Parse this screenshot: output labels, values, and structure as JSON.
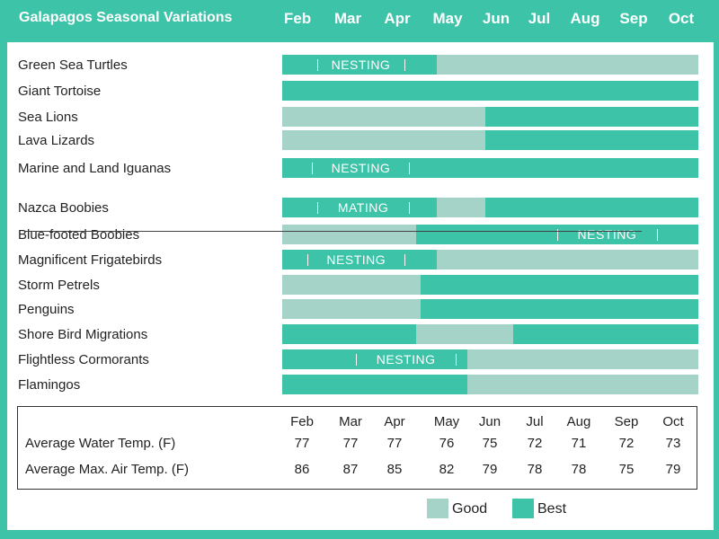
{
  "title": "Galapagos Seasonal Variations",
  "colors": {
    "good": "#a5d3c7",
    "best": "#3cc3a8"
  },
  "chart_data": {
    "type": "timeline",
    "months": [
      "Feb",
      "Mar",
      "Apr",
      "May",
      "Jun",
      "Jul",
      "Aug",
      "Sep",
      "Oct"
    ],
    "groups": [
      [
        {
          "label": "Green Sea Turtles",
          "segments": [
            [
              "best",
              0,
              3.35
            ],
            [
              "good",
              3.35,
              9
            ]
          ],
          "note": {
            "text": "NESTING",
            "from": 0.75,
            "to": 2.65
          }
        },
        {
          "label": "Giant Tortoise",
          "segments": [
            [
              "best",
              0,
              9
            ]
          ]
        },
        {
          "label": "Sea Lions",
          "segments": [
            [
              "good",
              0,
              4.4
            ],
            [
              "best",
              4.4,
              9
            ]
          ]
        },
        {
          "label": "Lava Lizards",
          "segments": [
            [
              "good",
              0,
              4.4
            ],
            [
              "best",
              4.4,
              9
            ]
          ]
        },
        {
          "label": "Marine and Land Iguanas",
          "segments": [
            [
              "best",
              0,
              9
            ]
          ],
          "note": {
            "text": "NESTING",
            "from": 0.65,
            "to": 2.75
          }
        }
      ],
      [
        {
          "label": "Nazca Boobies",
          "segments": [
            [
              "best",
              0,
              3.35
            ],
            [
              "good",
              3.35,
              4.4
            ],
            [
              "best",
              4.4,
              9
            ]
          ],
          "note": {
            "text": "MATING",
            "from": 0.75,
            "to": 2.75
          }
        },
        {
          "label": "Blue-footed Boobies",
          "segments": [
            [
              "good",
              0,
              2.9
            ],
            [
              "best",
              2.9,
              9
            ]
          ],
          "note": {
            "text": "NESTING",
            "from": 5.95,
            "to": 8.1
          }
        },
        {
          "label": "Magnificent Frigatebirds",
          "segments": [
            [
              "best",
              0,
              3.35
            ],
            [
              "good",
              3.35,
              9
            ]
          ],
          "note": {
            "text": "NESTING",
            "from": 0.55,
            "to": 2.65
          }
        },
        {
          "label": "Storm Petrels",
          "segments": [
            [
              "good",
              0,
              3.0
            ],
            [
              "best",
              3.0,
              9
            ]
          ]
        },
        {
          "label": "Penguins",
          "segments": [
            [
              "good",
              0,
              3.0
            ],
            [
              "best",
              3.0,
              9
            ]
          ]
        },
        {
          "label": "Shore Bird Migrations",
          "segments": [
            [
              "best",
              0,
              2.9
            ],
            [
              "good",
              2.9,
              5.0
            ],
            [
              "best",
              5.0,
              9
            ]
          ]
        },
        {
          "label": "Flightless Cormorants",
          "segments": [
            [
              "best",
              0,
              4.0
            ],
            [
              "good",
              4.0,
              9
            ]
          ],
          "note": {
            "text": "NESTING",
            "from": 1.6,
            "to": 3.75
          }
        },
        {
          "label": "Flamingos",
          "segments": [
            [
              "best",
              0,
              4.0
            ],
            [
              "good",
              4.0,
              9
            ]
          ]
        }
      ]
    ],
    "temperatures": {
      "months": [
        "Feb",
        "Mar",
        "Apr",
        "May",
        "Jun",
        "Jul",
        "Aug",
        "Sep",
        "Oct"
      ],
      "rows": [
        {
          "label": "Average Water Temp. (F)",
          "values": [
            77,
            77,
            77,
            76,
            75,
            72,
            71,
            72,
            73
          ]
        },
        {
          "label": "Average Max. Air Temp. (F)",
          "values": [
            86,
            87,
            85,
            82,
            79,
            78,
            78,
            75,
            79
          ]
        }
      ]
    },
    "legend": [
      {
        "key": "good",
        "label": "Good"
      },
      {
        "key": "best",
        "label": "Best"
      }
    ]
  }
}
